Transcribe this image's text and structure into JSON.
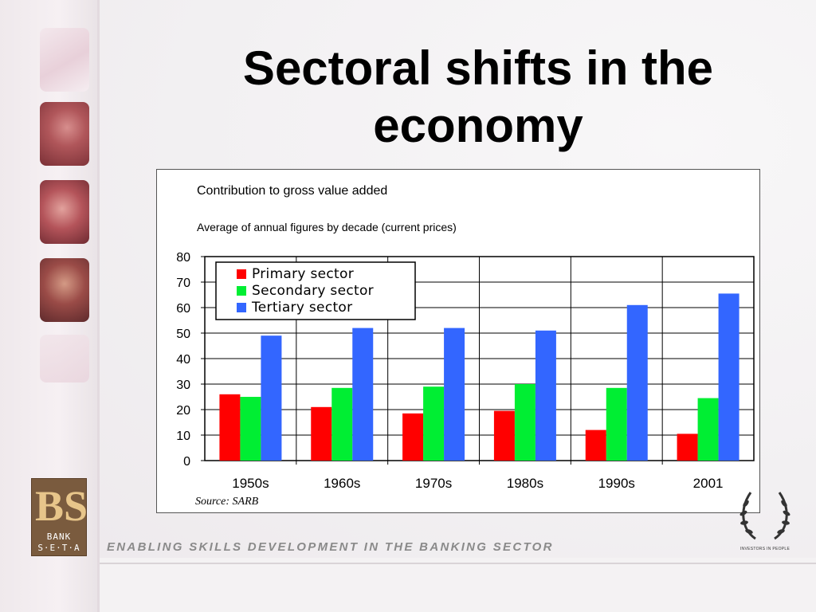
{
  "slide": {
    "title": "Sectoral shifts in the economy",
    "tagline": "ENABLING SKILLS DEVELOPMENT IN THE BANKING SECTOR",
    "logo": {
      "mark": "BS",
      "line1": "BANK",
      "line2": "S·E·T·A"
    },
    "badge": {
      "text": "INVESTORS IN PEOPLE",
      "icon": "laurel-wreath-icon"
    }
  },
  "chart_data": {
    "type": "bar",
    "title": "Contribution to gross value added",
    "subtitle": "Average of annual figures by decade (current prices)",
    "source": "Source: SARB",
    "categories": [
      "1950s",
      "1960s",
      "1970s",
      "1980s",
      "1990s",
      "2001"
    ],
    "series": [
      {
        "name": "Primary sector",
        "color": "#ff0000",
        "values": [
          26,
          21,
          18.5,
          19.5,
          12,
          10.5
        ]
      },
      {
        "name": "Secondary sector",
        "color": "#00ee33",
        "values": [
          25,
          28.5,
          29,
          30,
          28.5,
          24.5
        ]
      },
      {
        "name": "Tertiary sector",
        "color": "#3366ff",
        "values": [
          49,
          52,
          52,
          51,
          61,
          65.5
        ]
      }
    ],
    "ylim": [
      0,
      80
    ],
    "yticks": [
      0,
      10,
      20,
      30,
      40,
      50,
      60,
      70,
      80
    ],
    "grid": true,
    "legend_position": "top-left"
  }
}
